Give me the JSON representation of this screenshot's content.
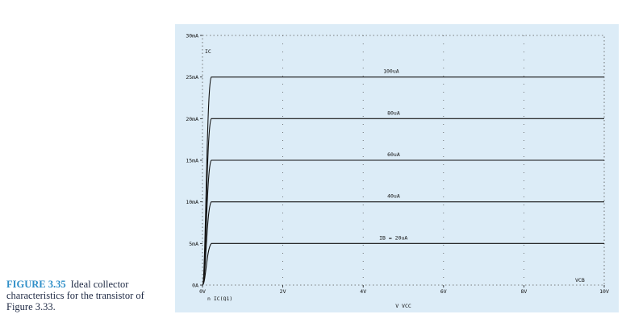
{
  "caption": {
    "label": "FIGURE 3.35",
    "text": "Ideal collector characteristics for the transistor of Figure 3.33."
  },
  "colors": {
    "panel": "#dcecf7",
    "trace": "#111111",
    "grid": "#555555",
    "caption_label": "#2f8fc8",
    "caption_text": "#1f2a44"
  },
  "chart_data": {
    "type": "line",
    "title": "",
    "y_axis_title": "IC",
    "x_axis_title": "VCB",
    "x_variable_label": "V VCC",
    "trace_label": "n IC(Q1)",
    "xlim": [
      0,
      10
    ],
    "ylim": [
      0,
      30
    ],
    "x_unit": "V",
    "y_unit": "mA",
    "grid": true,
    "x_ticks": [
      {
        "value": 0,
        "label": "0V"
      },
      {
        "value": 2,
        "label": "2V"
      },
      {
        "value": 4,
        "label": "4V"
      },
      {
        "value": 6,
        "label": "6V"
      },
      {
        "value": 8,
        "label": "8V"
      },
      {
        "value": 10,
        "label": "10V"
      }
    ],
    "y_ticks": [
      {
        "value": 0,
        "label": "0A"
      },
      {
        "value": 5,
        "label": "5mA"
      },
      {
        "value": 10,
        "label": "10mA"
      },
      {
        "value": 15,
        "label": "15mA"
      },
      {
        "value": 20,
        "label": "20mA"
      },
      {
        "value": 25,
        "label": "25mA"
      },
      {
        "value": 30,
        "label": "30mA"
      }
    ],
    "series": [
      {
        "name": "IB = 20uA",
        "ic_sat": 5,
        "x_label": 4.4
      },
      {
        "name": "40uA",
        "ic_sat": 10,
        "x_label": 4.6
      },
      {
        "name": "60uA",
        "ic_sat": 15,
        "x_label": 4.6
      },
      {
        "name": "80uA",
        "ic_sat": 20,
        "x_label": 4.6
      },
      {
        "name": "100uA",
        "ic_sat": 25,
        "x_label": 4.5
      }
    ]
  }
}
